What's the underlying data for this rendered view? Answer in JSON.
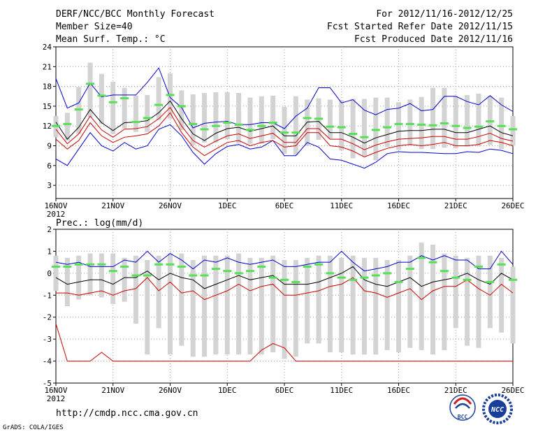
{
  "header": {
    "left_line1": "DERF/NCC/BCC Monthly Forecast",
    "left_line2": "Member Size=40",
    "left_line3": "Mean Surf. Temp.: °C",
    "right_line1": "For 2012/11/16-2012/12/25",
    "right_line2": "Fcst Started Refer Date 2012/11/15",
    "right_line3": "Fcst Produced Date 2012/11/16"
  },
  "footer": {
    "url": "http://cmdp.ncc.cma.gov.cn",
    "credit": "GrADS: COLA/IGES",
    "logo_bcc": "BCC",
    "logo_ncc": "NCC"
  },
  "colors": {
    "box": "#d3d3d3",
    "median": "#55e055",
    "mean": "#000000",
    "upper": "#0000cc",
    "lower": "#cc0000",
    "grid": "#999999"
  },
  "chart_data": [
    {
      "type": "line",
      "title": "Mean Surf. Temp.: °C",
      "x_tick_labels": [
        "16NOV",
        "21NOV",
        "26NOV",
        "1DEC",
        "6DEC",
        "11DEC",
        "16DEC",
        "21DEC",
        "26DEC"
      ],
      "x_year_label": "2012",
      "y_ticks": [
        3,
        6,
        9,
        12,
        15,
        18,
        21,
        24
      ],
      "ylim": [
        1,
        24
      ],
      "days": 40,
      "series": [
        {
          "name": "upper",
          "values": [
            19.2,
            14.7,
            15.5,
            18.5,
            16.4,
            16.7,
            16.7,
            16.7,
            18.6,
            20.8,
            16.3,
            14.8,
            11.7,
            12.4,
            12.6,
            12.7,
            12.2,
            12.2,
            12.5,
            12.5,
            11.6,
            13.5,
            14.7,
            17.8,
            17.8,
            15.5,
            16.0,
            14.4,
            13.7,
            14.5,
            14.7,
            15.4,
            14.3,
            14.5,
            16.5,
            16.5,
            15.7,
            15.2,
            16.6,
            15.2,
            14.2
          ]
        },
        {
          "name": "mean",
          "values": [
            12.6,
            10.0,
            11.8,
            14.5,
            12.5,
            11.3,
            12.5,
            12.6,
            12.8,
            14.0,
            15.8,
            13.1,
            10.8,
            9.8,
            10.9,
            11.6,
            11.8,
            11.2,
            11.6,
            12.0,
            10.5,
            10.5,
            12.6,
            12.7,
            11.0,
            11.0,
            10.3,
            9.4,
            10.2,
            10.7,
            11.2,
            11.3,
            11.3,
            11.5,
            11.5,
            11.0,
            11.0,
            11.5,
            12.0,
            11.0,
            10.5
          ]
        },
        {
          "name": "lower_mean",
          "values": [
            11.5,
            9.3,
            10.8,
            13.5,
            11.4,
            10.3,
            11.5,
            11.6,
            11.9,
            13.1,
            14.8,
            12.0,
            9.8,
            8.8,
            9.7,
            10.5,
            10.8,
            10.1,
            10.5,
            10.9,
            9.5,
            9.5,
            11.6,
            11.6,
            10.0,
            10.0,
            9.3,
            8.4,
            9.1,
            9.6,
            10.0,
            10.1,
            10.2,
            10.4,
            10.4,
            10.0,
            10.0,
            10.4,
            10.9,
            10.1,
            9.7
          ]
        },
        {
          "name": "lower_red",
          "values": [
            10.0,
            8.5,
            9.8,
            12.5,
            10.5,
            9.5,
            10.3,
            10.5,
            10.8,
            12.0,
            14.0,
            11.0,
            8.8,
            7.5,
            8.5,
            9.5,
            9.8,
            9.0,
            9.5,
            9.8,
            8.8,
            9.0,
            11.0,
            11.0,
            9.0,
            8.8,
            8.2,
            7.3,
            8.0,
            8.6,
            9.0,
            9.2,
            9.0,
            9.2,
            9.5,
            9.0,
            9.0,
            9.2,
            9.8,
            9.5,
            9.0
          ]
        },
        {
          "name": "lower",
          "values": [
            7.0,
            6.0,
            8.5,
            11.0,
            9.0,
            8.2,
            9.5,
            8.5,
            9.0,
            11.5,
            12.2,
            10.5,
            8.0,
            6.2,
            7.8,
            8.9,
            9.2,
            8.5,
            8.8,
            9.8,
            7.5,
            7.5,
            9.5,
            8.8,
            7.0,
            6.8,
            6.2,
            5.6,
            6.5,
            7.8,
            8.1,
            8.0,
            8.0,
            7.9,
            7.8,
            7.8,
            8.1,
            8.0,
            8.5,
            8.3,
            7.8
          ]
        },
        {
          "name": "median",
          "values": [
            12.0,
            12.3,
            14.5,
            18.4,
            16.6,
            15.6,
            16.2,
            12.6,
            13.2,
            15.2,
            16.7,
            15.0,
            12.3,
            11.5,
            12.0,
            12.5,
            12.2,
            11.4,
            12.0,
            12.5,
            11.0,
            11.0,
            13.2,
            13.1,
            11.9,
            11.8,
            10.8,
            10.3,
            11.4,
            11.8,
            12.3,
            12.3,
            12.2,
            12.1,
            12.4,
            12.0,
            11.7,
            11.9,
            12.7,
            12.0,
            11.5
          ]
        },
        {
          "name": "box_high",
          "values": [
            13.5,
            14.0,
            17.9,
            21.6,
            19.9,
            18.7,
            17.8,
            16.6,
            16.7,
            19.4,
            20.0,
            17.4,
            16.8,
            17.0,
            17.1,
            17.1,
            17.0,
            16.3,
            16.5,
            16.6,
            14.9,
            16.5,
            16.0,
            16.2,
            16.0,
            15.9,
            16.1,
            16.1,
            16.3,
            16.3,
            15.6,
            16.0,
            16.4,
            17.8,
            17.8,
            16.5,
            16.7,
            16.9,
            16.5,
            16.3,
            13.5
          ]
        },
        {
          "name": "box_low",
          "values": [
            10.3,
            9.8,
            10.8,
            13.3,
            12.3,
            10.8,
            11.6,
            11.1,
            11.1,
            12.9,
            13.1,
            11.4,
            9.1,
            9.5,
            9.5,
            10.0,
            9.4,
            9.3,
            9.3,
            10.0,
            7.8,
            7.6,
            9.0,
            9.9,
            10.1,
            8.3,
            7.1,
            7.4,
            6.8,
            8.8,
            8.4,
            9.0,
            8.5,
            8.5,
            8.7,
            8.6,
            8.9,
            8.9,
            9.1,
            8.5,
            9.0
          ]
        }
      ]
    },
    {
      "type": "line",
      "title": "Prec.: log(mm/d)",
      "x_tick_labels": [
        "16NOV",
        "21NOV",
        "26NOV",
        "1DEC",
        "6DEC",
        "11DEC",
        "16DEC",
        "21DEC",
        "26DEC"
      ],
      "x_year_label": "2012",
      "y_ticks": [
        -5,
        -4,
        -3,
        -2,
        -1,
        0,
        1,
        2
      ],
      "ylim": [
        -5,
        2
      ],
      "days": 40,
      "series": [
        {
          "name": "upper",
          "values": [
            0.5,
            0.4,
            0.5,
            0.3,
            0.3,
            0.3,
            0.6,
            0.5,
            1.0,
            0.5,
            0.9,
            0.6,
            0.2,
            0.6,
            0.5,
            0.7,
            0.5,
            0.4,
            0.5,
            0.6,
            0.3,
            0.3,
            0.4,
            0.5,
            0.5,
            1.0,
            0.5,
            0.1,
            0.2,
            0.3,
            0.5,
            0.5,
            0.8,
            0.6,
            0.8,
            0.6,
            0.6,
            0.2,
            0.2,
            1.0,
            0.4
          ]
        },
        {
          "name": "mean",
          "values": [
            -0.2,
            -0.5,
            -0.4,
            -0.3,
            -0.3,
            -0.5,
            -0.2,
            -0.2,
            0.1,
            -0.3,
            0.0,
            -0.2,
            -0.3,
            -0.7,
            -0.5,
            -0.3,
            -0.1,
            -0.3,
            -0.2,
            -0.1,
            -0.5,
            -0.5,
            -0.5,
            -0.4,
            -0.2,
            0.0,
            0.3,
            -0.3,
            -0.5,
            -0.6,
            -0.4,
            -0.2,
            -0.6,
            -0.4,
            -0.3,
            -0.2,
            0.0,
            -0.3,
            -0.5,
            0.0,
            -0.3
          ]
        },
        {
          "name": "lower_red",
          "values": [
            -0.9,
            -0.9,
            -1.0,
            -0.9,
            -0.8,
            -1.0,
            -0.8,
            -0.7,
            -0.2,
            -0.8,
            -0.4,
            -0.9,
            -0.8,
            -1.2,
            -1.0,
            -0.8,
            -0.5,
            -0.8,
            -0.6,
            -0.5,
            -1.0,
            -1.0,
            -0.9,
            -0.8,
            -0.6,
            -0.5,
            -0.2,
            -0.8,
            -0.9,
            -1.1,
            -0.9,
            -0.7,
            -1.2,
            -0.8,
            -0.6,
            -0.6,
            -0.3,
            -0.7,
            -1.0,
            -0.5,
            -0.9
          ]
        },
        {
          "name": "lower",
          "values": [
            -2.3,
            -4.0,
            -4.0,
            -4.0,
            -3.6,
            -4.0,
            -4.0,
            -4.0,
            -4.0,
            -4.0,
            -4.0,
            -4.0,
            -4.0,
            -4.0,
            -4.0,
            -4.0,
            -4.0,
            -4.0,
            -3.5,
            -3.2,
            -3.4,
            -4.0,
            -4.0,
            -4.0,
            -4.0,
            -4.0,
            -4.0,
            -4.0,
            -4.0,
            -4.0,
            -4.0,
            -4.0,
            -4.0,
            -4.0,
            -4.0,
            -4.0,
            -4.0,
            -4.0,
            -4.0,
            -4.0,
            -4.0
          ]
        },
        {
          "name": "median",
          "values": [
            0.3,
            0.3,
            0.4,
            0.4,
            0.4,
            0.1,
            0.3,
            -0.1,
            -0.1,
            0.4,
            0.4,
            0.3,
            -0.1,
            -0.1,
            0.2,
            0.1,
            0.0,
            0.1,
            0.3,
            -0.2,
            -0.3,
            -0.4,
            0.3,
            0.4,
            0.0,
            -0.2,
            -0.3,
            -0.2,
            -0.1,
            0.0,
            -0.4,
            0.2,
            0.7,
            0.5,
            0.1,
            -0.2,
            -0.3,
            0.3,
            -0.4,
            0.4,
            -0.3
          ]
        },
        {
          "name": "box_high",
          "values": [
            0.8,
            0.7,
            0.8,
            0.9,
            0.9,
            0.9,
            0.7,
            0.8,
            0.6,
            0.8,
            0.9,
            0.9,
            0.6,
            0.8,
            0.8,
            0.8,
            0.9,
            0.7,
            0.7,
            0.8,
            0.6,
            0.6,
            0.7,
            0.8,
            0.8,
            0.7,
            0.8,
            0.7,
            0.7,
            0.6,
            0.6,
            0.8,
            1.4,
            1.3,
            0.9,
            0.8,
            0.7,
            0.8,
            0.8,
            0.7,
            0.3
          ]
        },
        {
          "name": "box_low",
          "values": [
            -0.8,
            -1.5,
            -1.2,
            -1.0,
            -1.1,
            -1.4,
            -1.3,
            -2.3,
            -3.7,
            -2.5,
            -3.7,
            -3.3,
            -3.8,
            -3.8,
            -3.7,
            -3.7,
            -3.7,
            -3.7,
            -3.7,
            -3.6,
            -3.9,
            -3.8,
            -3.2,
            -3.2,
            -3.6,
            -3.6,
            -3.7,
            -3.7,
            -3.7,
            -3.5,
            -3.6,
            -3.4,
            -3.5,
            -3.7,
            -3.5,
            -2.5,
            -3.3,
            -3.4,
            -2.5,
            -2.7,
            -3.2
          ]
        }
      ]
    }
  ]
}
